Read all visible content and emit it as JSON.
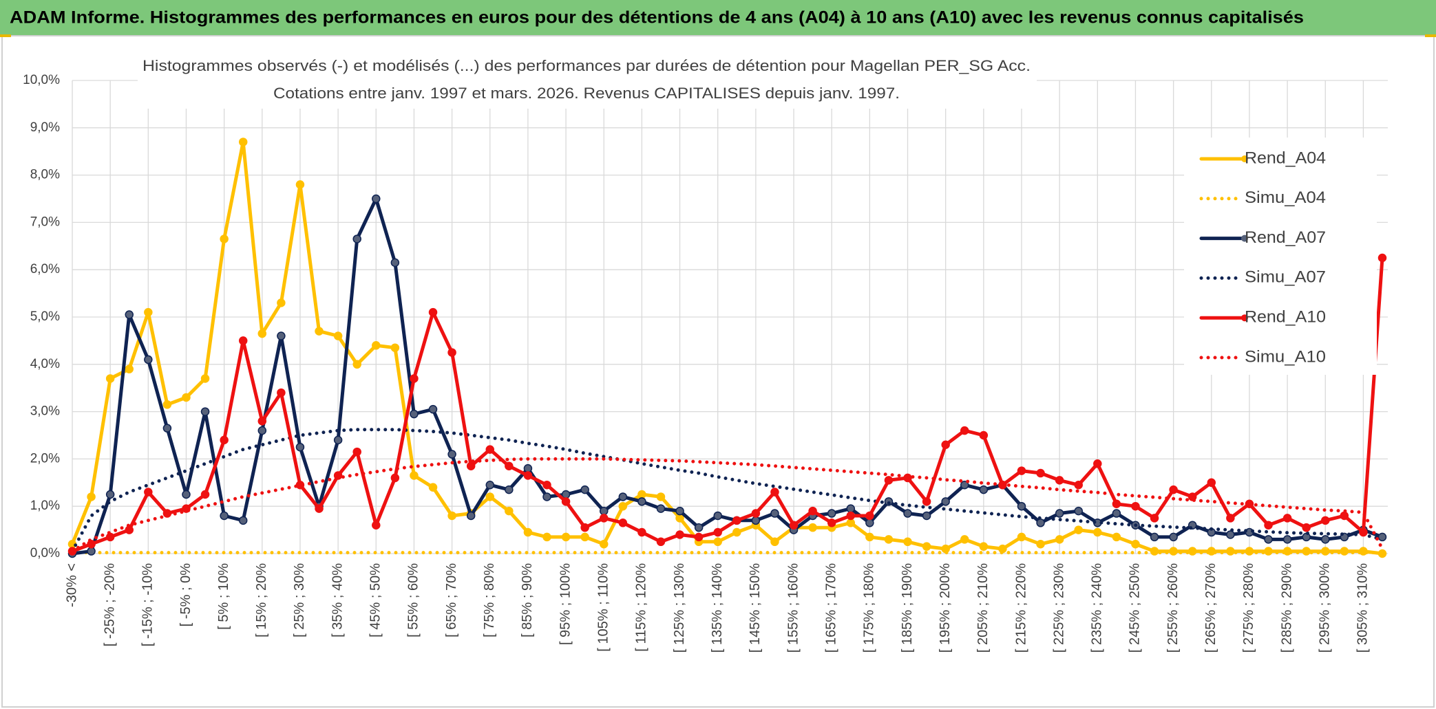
{
  "chart_data": {
    "type": "line",
    "title": "ADAM Informe. Histogrammes des performances en euros pour des détentions de 4 ans (A04) à 10 ans (A10) avec les revenus connus capitalisés",
    "subtitle": [
      "Histogrammes observés (-) et modélisés (...) des performances par durées de détention pour Magellan PER_SG Acc.",
      "Cotations entre janv. 1997 et mars. 2026. Revenus CAPITALISES depuis janv. 1997."
    ],
    "categories": [
      "-30% <",
      null,
      "[ -25% ; -20%",
      null,
      "[ -15% ; -10%",
      null,
      "[ -5% ; 0%",
      null,
      "[ 5% ; 10%",
      null,
      "[ 15% ; 20%",
      null,
      "[ 25% ; 30%",
      null,
      "[ 35% ; 40%",
      null,
      "[ 45% ; 50%",
      null,
      "[ 55% ; 60%",
      null,
      "[ 65% ; 70%",
      null,
      "[ 75% ; 80%",
      null,
      "[ 85% ; 90%",
      null,
      "[ 95% ; 100%",
      null,
      "[ 105% ; 110%",
      null,
      "[ 115% ; 120%",
      null,
      "[ 125% ; 130%",
      null,
      "[ 135% ; 140%",
      null,
      "[ 145% ; 150%",
      null,
      "[ 155% ; 160%",
      null,
      "[ 165% ; 170%",
      null,
      "[ 175% ; 180%",
      null,
      "[ 185% ; 190%",
      null,
      "[ 195% ; 200%",
      null,
      "[ 205% ; 210%",
      null,
      "[ 215% ; 220%",
      null,
      "[ 225% ; 230%",
      null,
      "[ 235% ; 240%",
      null,
      "[ 245% ; 250%",
      null,
      "[ 255% ; 260%",
      null,
      "[ 265% ; 270%",
      null,
      "[ 275% ; 280%",
      null,
      "[ 285% ; 290%",
      null,
      "[ 295% ; 300%",
      null,
      "[ 305% ; 310%",
      null
    ],
    "series": [
      {
        "name": "Rend_A04",
        "color": "#ffc000",
        "dash": false,
        "marker": true,
        "values": [
          0.2,
          1.2,
          3.7,
          3.9,
          5.1,
          3.15,
          3.3,
          3.7,
          6.65,
          8.7,
          4.65,
          5.3,
          7.8,
          4.7,
          4.6,
          4.0,
          4.4,
          4.35,
          1.65,
          1.4,
          0.8,
          0.85,
          1.2,
          0.9,
          0.45,
          0.35,
          0.35,
          0.35,
          0.2,
          1.0,
          1.25,
          1.2,
          0.75,
          0.25,
          0.25,
          0.45,
          0.6,
          0.25,
          0.55,
          0.55,
          0.55,
          0.65,
          0.35,
          0.3,
          0.25,
          0.15,
          0.1,
          0.3,
          0.15,
          0.1,
          0.35,
          0.2,
          0.3,
          0.5,
          0.45,
          0.35,
          0.2,
          0.05,
          0.05,
          0.05,
          0.05,
          0.05,
          0.05,
          0.05,
          0.05,
          0.05,
          0.05,
          0.05,
          0.05,
          0.0
        ]
      },
      {
        "name": "Simu_A04",
        "color": "#ffc000",
        "dash": true,
        "marker": false,
        "values": [
          0.02,
          0.02,
          0.02,
          0.02,
          0.02,
          0.02,
          0.02,
          0.02,
          0.02,
          0.02,
          0.02,
          0.02,
          0.02,
          0.02,
          0.02,
          0.02,
          0.02,
          0.02,
          0.02,
          0.02,
          0.02,
          0.02,
          0.02,
          0.02,
          0.02,
          0.02,
          0.02,
          0.02,
          0.02,
          0.02,
          0.02,
          0.02,
          0.02,
          0.02,
          0.02,
          0.02,
          0.02,
          0.02,
          0.02,
          0.02,
          0.02,
          0.02,
          0.02,
          0.02,
          0.02,
          0.02,
          0.02,
          0.02,
          0.02,
          0.02,
          0.02,
          0.02,
          0.02,
          0.02,
          0.02,
          0.02,
          0.02,
          0.02,
          0.02,
          0.02,
          0.02,
          0.02,
          0.02,
          0.02,
          0.02,
          0.02,
          0.02,
          0.02,
          0.02,
          0.02
        ]
      },
      {
        "name": "Rend_A07",
        "color": "#0f2352",
        "dash": false,
        "marker": true,
        "values": [
          0.0,
          0.05,
          1.25,
          5.05,
          4.1,
          2.65,
          1.25,
          3.0,
          0.8,
          0.7,
          2.6,
          4.6,
          2.25,
          1.0,
          2.4,
          6.65,
          7.5,
          6.15,
          2.95,
          3.05,
          2.1,
          0.8,
          1.45,
          1.35,
          1.8,
          1.2,
          1.25,
          1.35,
          0.9,
          1.2,
          1.1,
          0.95,
          0.9,
          0.55,
          0.8,
          0.7,
          0.7,
          0.85,
          0.5,
          0.8,
          0.85,
          0.95,
          0.65,
          1.1,
          0.85,
          0.8,
          1.1,
          1.45,
          1.35,
          1.45,
          1.0,
          0.65,
          0.85,
          0.9,
          0.65,
          0.85,
          0.6,
          0.35,
          0.35,
          0.6,
          0.45,
          0.4,
          0.45,
          0.3,
          0.3,
          0.35,
          0.3,
          0.35,
          0.5,
          0.35
        ]
      },
      {
        "name": "Simu_A07",
        "color": "#0f2352",
        "dash": true,
        "marker": false,
        "values": [
          0.05,
          0.8,
          1.1,
          1.3,
          1.45,
          1.6,
          1.75,
          1.9,
          2.05,
          2.2,
          2.3,
          2.4,
          2.5,
          2.55,
          2.6,
          2.62,
          2.62,
          2.62,
          2.6,
          2.58,
          2.55,
          2.5,
          2.45,
          2.4,
          2.33,
          2.27,
          2.2,
          2.12,
          2.05,
          1.98,
          1.9,
          1.83,
          1.76,
          1.7,
          1.62,
          1.55,
          1.48,
          1.42,
          1.36,
          1.3,
          1.24,
          1.18,
          1.12,
          1.07,
          1.02,
          0.98,
          0.94,
          0.9,
          0.86,
          0.82,
          0.78,
          0.75,
          0.72,
          0.69,
          0.66,
          0.63,
          0.6,
          0.58,
          0.56,
          0.54,
          0.52,
          0.5,
          0.48,
          0.46,
          0.44,
          0.43,
          0.42,
          0.41,
          0.4,
          0.3
        ]
      },
      {
        "name": "Rend_A10",
        "color": "#ee1111",
        "dash": false,
        "marker": true,
        "values": [
          0.05,
          0.2,
          0.35,
          0.5,
          1.3,
          0.85,
          0.95,
          1.25,
          2.4,
          4.5,
          2.8,
          3.4,
          1.45,
          0.95,
          1.65,
          2.15,
          0.6,
          1.6,
          3.7,
          5.1,
          4.25,
          1.85,
          2.2,
          1.85,
          1.65,
          1.45,
          1.1,
          0.55,
          0.75,
          0.65,
          0.45,
          0.25,
          0.4,
          0.35,
          0.45,
          0.7,
          0.85,
          1.3,
          0.6,
          0.9,
          0.65,
          0.8,
          0.8,
          1.55,
          1.6,
          1.1,
          2.3,
          2.6,
          2.5,
          1.45,
          1.75,
          1.7,
          1.55,
          1.45,
          1.9,
          1.05,
          1.0,
          0.75,
          1.35,
          1.2,
          1.5,
          0.75,
          1.05,
          0.6,
          0.75,
          0.55,
          0.7,
          0.8,
          0.45,
          6.25
        ]
      },
      {
        "name": "Simu_A10",
        "color": "#ee1111",
        "dash": true,
        "marker": false,
        "values": [
          0.05,
          0.3,
          0.45,
          0.6,
          0.7,
          0.8,
          0.9,
          1.0,
          1.1,
          1.2,
          1.28,
          1.36,
          1.44,
          1.52,
          1.6,
          1.67,
          1.73,
          1.79,
          1.84,
          1.88,
          1.92,
          1.95,
          1.97,
          1.99,
          2.0,
          2.0,
          2.0,
          2.0,
          2.0,
          1.99,
          1.98,
          1.97,
          1.96,
          1.94,
          1.92,
          1.9,
          1.88,
          1.85,
          1.82,
          1.79,
          1.76,
          1.73,
          1.7,
          1.67,
          1.63,
          1.6,
          1.56,
          1.53,
          1.49,
          1.46,
          1.42,
          1.39,
          1.35,
          1.32,
          1.29,
          1.25,
          1.22,
          1.19,
          1.16,
          1.13,
          1.1,
          1.07,
          1.04,
          1.01,
          0.98,
          0.95,
          0.92,
          0.9,
          0.87,
          0.1
        ]
      }
    ],
    "ylim": [
      0,
      10
    ],
    "yticks": [
      {
        "value": 0,
        "label": "0,0%"
      },
      {
        "value": 1,
        "label": "1,0%"
      },
      {
        "value": 2,
        "label": "2,0%"
      },
      {
        "value": 3,
        "label": "3,0%"
      },
      {
        "value": 4,
        "label": "4,0%"
      },
      {
        "value": 5,
        "label": "5,0%"
      },
      {
        "value": 6,
        "label": "6,0%"
      },
      {
        "value": 7,
        "label": "7,0%"
      },
      {
        "value": 8,
        "label": "8,0%"
      },
      {
        "value": 9,
        "label": "9,0%"
      },
      {
        "value": 10,
        "label": "10,0%"
      }
    ],
    "grid": true,
    "legend": "right"
  }
}
